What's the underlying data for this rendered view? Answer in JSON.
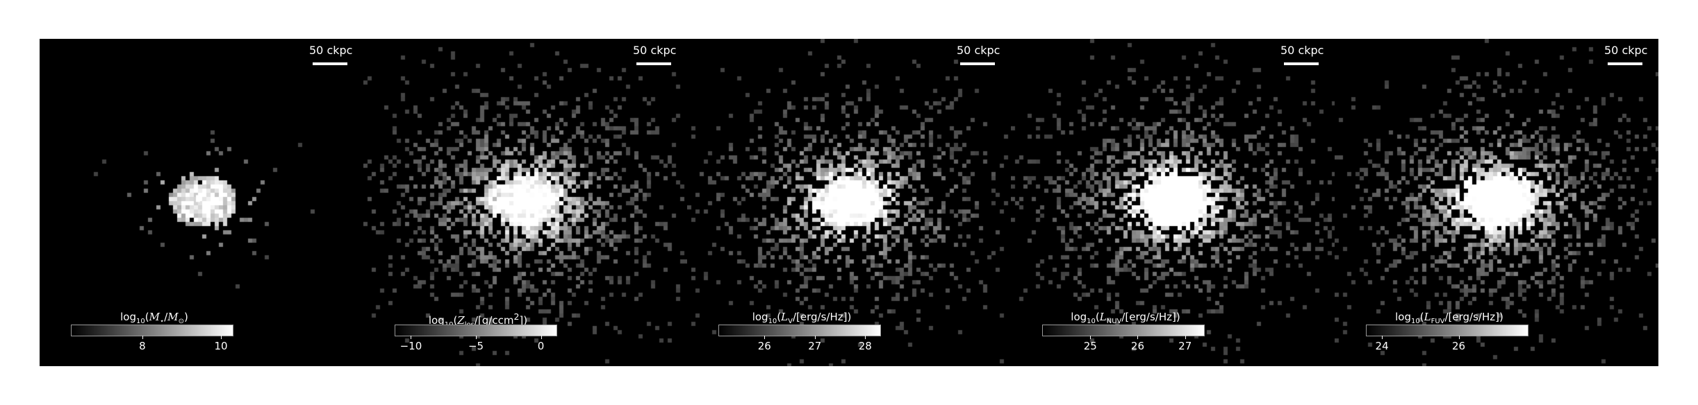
{
  "scalebar_label": "50 ckpc",
  "panels": [
    {
      "name": "stellar-mass",
      "colorbar": {
        "label_prefix": "log",
        "label_base": "10",
        "label_body": "(M⋆/M⊙)",
        "vmin": 6.2,
        "vmax": 10.3,
        "ticks": [
          {
            "value": 8,
            "label": "8"
          },
          {
            "value": 10,
            "label": "10"
          }
        ]
      },
      "seed": 11,
      "spread": 0.35,
      "brightness": 0.55,
      "bg_density": 0.05
    },
    {
      "name": "metallicity",
      "colorbar": {
        "label_prefix": "log",
        "label_base": "10",
        "label_body": "(Zlos/[g/ccm²])",
        "vmin": -11.2,
        "vmax": 1.2,
        "ticks": [
          {
            "value": -10,
            "label": "−10"
          },
          {
            "value": -5,
            "label": "−5"
          },
          {
            "value": 0,
            "label": "0"
          }
        ]
      },
      "seed": 23,
      "spread": 0.6,
      "brightness": 0.75,
      "bg_density": 0.35
    },
    {
      "name": "v-band-luminosity",
      "colorbar": {
        "label_prefix": "log",
        "label_base": "10",
        "label_body": "(LV/[erg/s/Hz])",
        "vmin": 25.1,
        "vmax": 28.3,
        "ticks": [
          {
            "value": 26,
            "label": "26"
          },
          {
            "value": 27,
            "label": "27"
          },
          {
            "value": 28,
            "label": "28"
          }
        ]
      },
      "seed": 37,
      "spread": 0.6,
      "brightness": 0.8,
      "bg_density": 0.3
    },
    {
      "name": "nuv-luminosity",
      "colorbar": {
        "label_prefix": "log",
        "label_base": "10",
        "label_body": "(LNUV/[erg/s/Hz])",
        "vmin": 24.0,
        "vmax": 27.4,
        "ticks": [
          {
            "value": 25,
            "label": "25"
          },
          {
            "value": 26,
            "label": "26"
          },
          {
            "value": 27,
            "label": "27"
          }
        ]
      },
      "seed": 41,
      "spread": 0.6,
      "brightness": 1.0,
      "bg_density": 0.35
    },
    {
      "name": "fuv-luminosity",
      "colorbar": {
        "label_prefix": "log",
        "label_base": "10",
        "label_body": "(LFUV/[erg/s/Hz])",
        "vmin": 23.6,
        "vmax": 27.8,
        "ticks": [
          {
            "value": 24,
            "label": "24"
          },
          {
            "value": 26,
            "label": "26"
          }
        ]
      },
      "seed": 53,
      "spread": 0.6,
      "brightness": 0.95,
      "bg_density": 0.35
    }
  ]
}
